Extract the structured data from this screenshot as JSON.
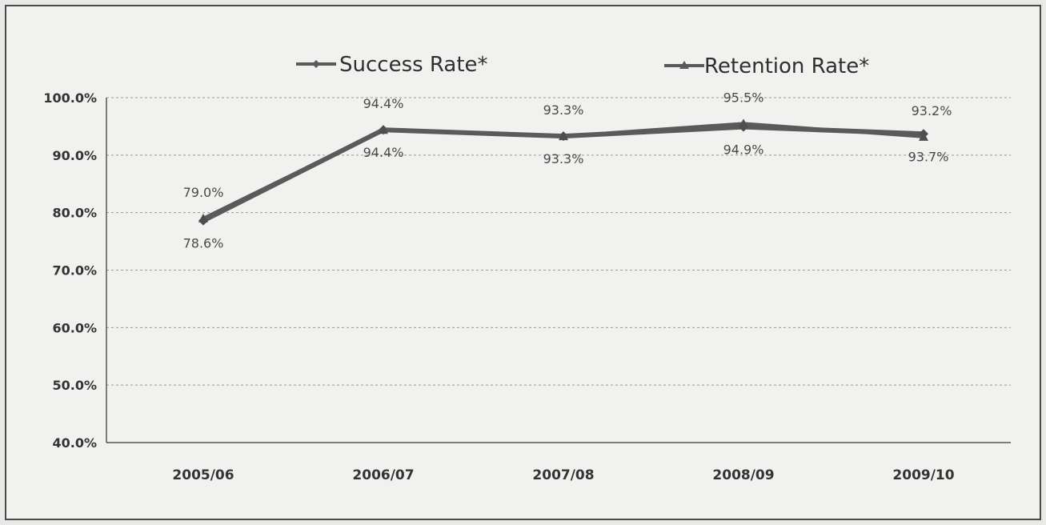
{
  "chart_data": {
    "type": "line",
    "title": "",
    "xlabel": "",
    "ylabel": "",
    "categories": [
      "2005/06",
      "2006/07",
      "2007/08",
      "2008/09",
      "2009/10"
    ],
    "series": [
      {
        "name": "Success Rate*",
        "values": [
          78.6,
          94.4,
          93.3,
          94.9,
          93.7
        ],
        "labels": [
          "78.6%",
          "94.4%",
          "93.3%",
          "94.9%",
          "93.7%"
        ],
        "label_position": "below",
        "marker": "diamond"
      },
      {
        "name": "Retention Rate*",
        "values": [
          79.0,
          94.4,
          93.3,
          95.5,
          93.2
        ],
        "labels": [
          "79.0%",
          "94.4%",
          "93.3%",
          "95.5%",
          "93.2%"
        ],
        "label_position": "above",
        "marker": "triangle"
      }
    ],
    "ylim": [
      40,
      100
    ],
    "yticks": [
      "40.0%",
      "50.0%",
      "60.0%",
      "70.0%",
      "80.0%",
      "90.0%",
      "100.0%"
    ],
    "grid": true,
    "legend_position": "top-center",
    "colors": {
      "line": "#5a5a5a",
      "grid": "#9a9a9a",
      "axis": "#555555"
    }
  }
}
